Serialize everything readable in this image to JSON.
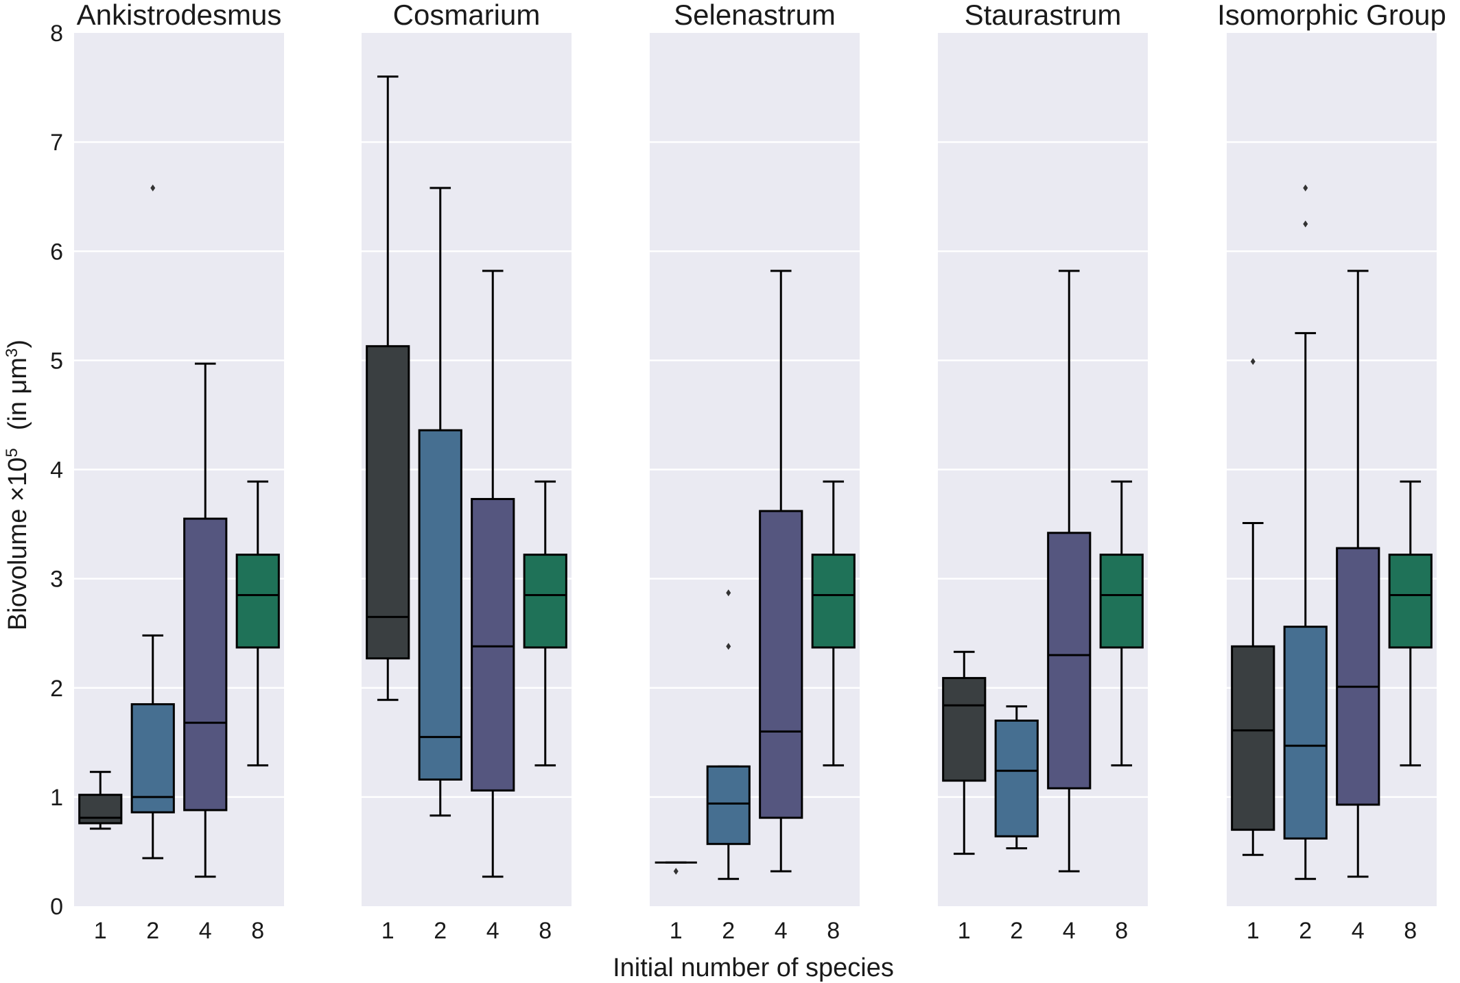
{
  "chart_data": {
    "type": "box",
    "xlabel": "Initial number of species",
    "ylabel_main": "Biovolume ×10",
    "ylabel_exp": "5",
    "ylabel_unit_pre": "(in μm",
    "ylabel_unit_exp": "3",
    "ylabel_unit_post": ")",
    "ylim": [
      0,
      8
    ],
    "yticks": [
      "0",
      "1",
      "2",
      "3",
      "4",
      "5",
      "6",
      "7",
      "8"
    ],
    "categories": [
      "1",
      "2",
      "4",
      "8"
    ],
    "colors": [
      "#3A3F41",
      "#466F91",
      "#55567F",
      "#1F7258"
    ],
    "panels": [
      {
        "title": "Ankistrodesmus",
        "boxes": [
          {
            "whislo": 0.71,
            "q1": 0.76,
            "med": 0.81,
            "q3": 1.02,
            "whishi": 1.23,
            "fliers": []
          },
          {
            "whislo": 0.44,
            "q1": 0.86,
            "med": 1.0,
            "q3": 1.85,
            "whishi": 2.48,
            "fliers": [
              6.58
            ]
          },
          {
            "whislo": 0.27,
            "q1": 0.88,
            "med": 1.68,
            "q3": 3.55,
            "whishi": 4.97,
            "fliers": []
          },
          {
            "whislo": 1.29,
            "q1": 2.37,
            "med": 2.85,
            "q3": 3.22,
            "whishi": 3.89,
            "fliers": []
          }
        ]
      },
      {
        "title": "Cosmarium",
        "boxes": [
          {
            "whislo": 1.89,
            "q1": 2.27,
            "med": 2.65,
            "q3": 5.13,
            "whishi": 7.6,
            "fliers": []
          },
          {
            "whislo": 0.83,
            "q1": 1.16,
            "med": 1.55,
            "q3": 4.36,
            "whishi": 6.58,
            "fliers": []
          },
          {
            "whislo": 0.27,
            "q1": 1.06,
            "med": 2.38,
            "q3": 3.73,
            "whishi": 5.82,
            "fliers": []
          },
          {
            "whislo": 1.29,
            "q1": 2.37,
            "med": 2.85,
            "q3": 3.22,
            "whishi": 3.89,
            "fliers": []
          }
        ]
      },
      {
        "title": "Selenastrum",
        "boxes": [
          {
            "whislo": 0.4,
            "q1": 0.4,
            "med": 0.4,
            "q3": 0.4,
            "whishi": 0.4,
            "fliers": [
              0.32
            ]
          },
          {
            "whislo": 0.25,
            "q1": 0.57,
            "med": 0.94,
            "q3": 1.28,
            "whishi": 1.28,
            "fliers": [
              2.38,
              2.87
            ]
          },
          {
            "whislo": 0.32,
            "q1": 0.81,
            "med": 1.6,
            "q3": 3.62,
            "whishi": 5.82,
            "fliers": []
          },
          {
            "whislo": 1.29,
            "q1": 2.37,
            "med": 2.85,
            "q3": 3.22,
            "whishi": 3.89,
            "fliers": []
          }
        ]
      },
      {
        "title": "Staurastrum",
        "boxes": [
          {
            "whislo": 0.48,
            "q1": 1.15,
            "med": 1.84,
            "q3": 2.09,
            "whishi": 2.33,
            "fliers": []
          },
          {
            "whislo": 0.53,
            "q1": 0.64,
            "med": 1.24,
            "q3": 1.7,
            "whishi": 1.83,
            "fliers": []
          },
          {
            "whislo": 0.32,
            "q1": 1.08,
            "med": 2.3,
            "q3": 3.42,
            "whishi": 5.82,
            "fliers": []
          },
          {
            "whislo": 1.29,
            "q1": 2.37,
            "med": 2.85,
            "q3": 3.22,
            "whishi": 3.89,
            "fliers": []
          }
        ]
      },
      {
        "title": "Isomorphic Group",
        "boxes": [
          {
            "whislo": 0.47,
            "q1": 0.7,
            "med": 1.61,
            "q3": 2.38,
            "whishi": 3.51,
            "fliers": [
              4.99
            ]
          },
          {
            "whislo": 0.25,
            "q1": 0.62,
            "med": 1.47,
            "q3": 2.56,
            "whishi": 5.25,
            "fliers": [
              6.25,
              6.58
            ]
          },
          {
            "whislo": 0.27,
            "q1": 0.93,
            "med": 2.01,
            "q3": 3.28,
            "whishi": 5.82,
            "fliers": []
          },
          {
            "whislo": 1.29,
            "q1": 2.37,
            "med": 2.85,
            "q3": 3.22,
            "whishi": 3.89,
            "fliers": []
          }
        ]
      }
    ]
  }
}
